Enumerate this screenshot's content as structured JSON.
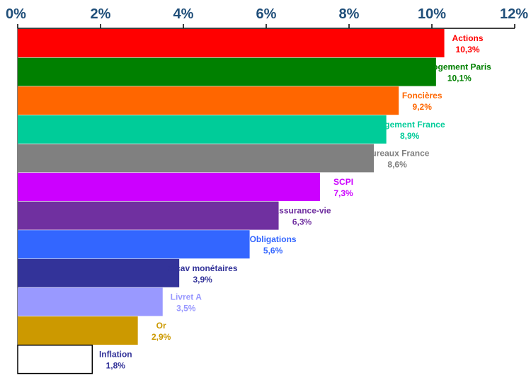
{
  "chart_data": {
    "type": "bar",
    "orientation": "horizontal",
    "title": "",
    "xlabel": "",
    "ylabel": "",
    "xlim": [
      0,
      12
    ],
    "axis_position": "top",
    "grid": false,
    "legend": "none",
    "x_ticks": [
      "0%",
      "2%",
      "4%",
      "6%",
      "8%",
      "10%",
      "12%"
    ],
    "bars": [
      {
        "name": "Actions",
        "value": 10.3,
        "label": "10,3%",
        "color": "#ff0000",
        "label_color": "#ff0000"
      },
      {
        "name": "Logement Paris",
        "value": 10.1,
        "label": "10,1%",
        "color": "#008000",
        "label_color": "#008000"
      },
      {
        "name": "Foncières",
        "value": 9.2,
        "label": "9,2%",
        "color": "#ff6600",
        "label_color": "#ff6600"
      },
      {
        "name": "Logement France",
        "value": 8.9,
        "label": "8,9%",
        "color": "#00cc99",
        "label_color": "#00cc99"
      },
      {
        "name": "Bureaux France",
        "value": 8.6,
        "label": "8,6%",
        "color": "#808080",
        "label_color": "#808080"
      },
      {
        "name": "SCPI",
        "value": 7.3,
        "label": "7,3%",
        "color": "#cc00ff",
        "label_color": "#cc00ff"
      },
      {
        "name": "Assurance-vie",
        "value": 6.3,
        "label": "6,3%",
        "color": "#7030a0",
        "label_color": "#7030a0"
      },
      {
        "name": "Obligations",
        "value": 5.6,
        "label": "5,6%",
        "color": "#3366ff",
        "label_color": "#3366ff"
      },
      {
        "name": "Sicav monétaires",
        "value": 3.9,
        "label": "3,9%",
        "color": "#333399",
        "label_color": "#333399"
      },
      {
        "name": "Livret A",
        "value": 3.5,
        "label": "3,5%",
        "color": "#9999ff",
        "label_color": "#9999ff"
      },
      {
        "name": "Or",
        "value": 2.9,
        "label": "2,9%",
        "color": "#cc9900",
        "label_color": "#cc9900"
      },
      {
        "name": "Inflation",
        "value": 1.8,
        "label": "1,8%",
        "color": "#ffffff",
        "label_color": "#333399",
        "outline": "#000000"
      }
    ]
  }
}
